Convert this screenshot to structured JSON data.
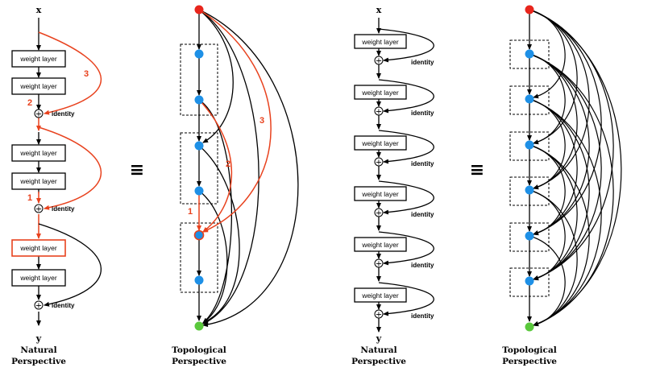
{
  "input_label": "x",
  "output_label": "y",
  "layer_label": "weight layer",
  "identity_label": "identity",
  "equiv_symbol": "≡",
  "plus_symbol": "+",
  "caption_natural_line1": "Natural",
  "caption_natural_line2": "Perspective",
  "caption_topo_line1": "Topological",
  "caption_topo_line2": "Perspective",
  "path_numbers": [
    "1",
    "2",
    "3"
  ],
  "colors": {
    "highlight": "#e8421e",
    "node": "#1e90e6",
    "start": "#e8251c",
    "end": "#5ac83c",
    "line": "#000000"
  }
}
